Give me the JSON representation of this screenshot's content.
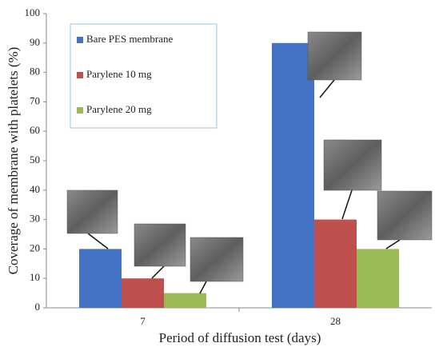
{
  "chart_data": {
    "type": "bar",
    "x_label": "Period of diffusion test (days)",
    "y_label": "Coverage of membrane with platelets (%)",
    "categories": [
      "7",
      "28"
    ],
    "series": [
      {
        "name": "Bare PES membrane",
        "color": "#4472c4",
        "values": [
          20,
          90
        ]
      },
      {
        "name": "Parylene 10 mg",
        "color": "#c0504d",
        "values": [
          10,
          30
        ]
      },
      {
        "name": "Parylene 20 mg",
        "color": "#9bbb59",
        "values": [
          5,
          20
        ]
      }
    ],
    "ylim": [
      0,
      100
    ],
    "yticks": [
      0,
      10,
      20,
      30,
      40,
      50,
      60,
      70,
      80,
      90,
      100
    ],
    "grid": false,
    "legend": "top-left"
  }
}
